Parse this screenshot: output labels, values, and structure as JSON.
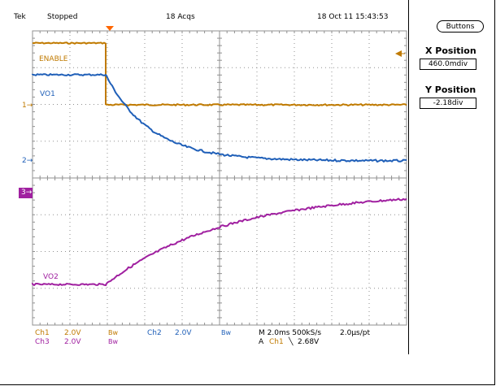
{
  "header": {
    "brand": "Tek",
    "state": "Stopped",
    "acqs": "18 Acqs",
    "datetime": "18 Oct 11 15:43:53"
  },
  "side_panel": {
    "buttons_label": "Buttons",
    "x_position_title": "X Position",
    "x_position_value": "460.0mdiv",
    "y_position_title": "Y Position",
    "y_position_value": "-2.18div"
  },
  "waveforms": {
    "enable_label": "ENABLE",
    "vo1_label": "VO1",
    "vo2_label": "VO2",
    "marker_ch1": "1",
    "marker_ch2": "2",
    "marker_ch3": "3"
  },
  "readout": {
    "ch1_name": "Ch1",
    "ch1_scale": "2.0V",
    "ch1_bw": "Bw",
    "ch2_name": "Ch2",
    "ch2_scale": "2.0V",
    "ch2_bw": "Bw",
    "ch3_name": "Ch3",
    "ch3_scale": "2.0V",
    "ch3_bw": "Bw",
    "timebase": "M 2.0ms 500kS/s",
    "pt": "2.0µs/pt",
    "trigger_prefix": "A",
    "trigger_channel": "Ch1",
    "trigger_slope": "╲",
    "trigger_level": "2.68V"
  },
  "colors": {
    "ch1": "#c07a00",
    "ch2": "#1f5fb8",
    "ch3": "#a020a0",
    "grid": "#909090",
    "trigger_marker": "#ff6600"
  }
}
